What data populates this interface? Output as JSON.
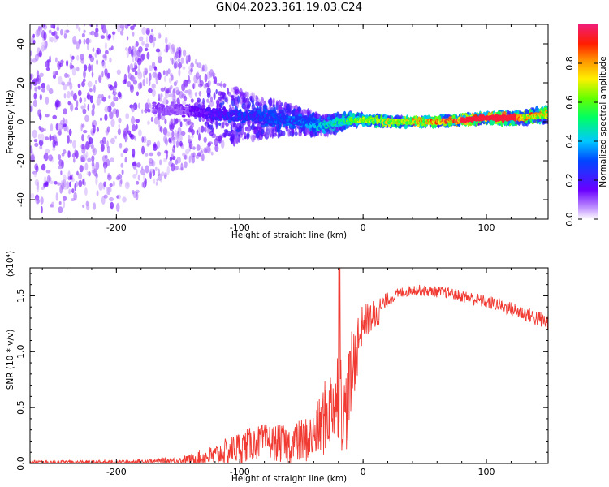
{
  "title": "GN04.2023.361.19.03.C24",
  "chart_data": [
    {
      "type": "heatmap",
      "xlabel": "Height of straight line (km)",
      "ylabel": "Frequency (Hz)",
      "xlim": [
        -270,
        150
      ],
      "ylim": [
        -50,
        50
      ],
      "xticks": [
        -200,
        -100,
        0,
        100
      ],
      "xtick_labels": [
        "-200",
        "-100",
        "0",
        "100"
      ],
      "yticks": [
        -40,
        -20,
        0,
        20,
        40
      ],
      "ytick_labels": [
        "-40",
        "-20",
        "0",
        "20",
        "40"
      ],
      "colorbar": {
        "label": "Normalized spectral amplitude",
        "range": [
          0,
          1
        ],
        "ticks": [
          0,
          0.2,
          0.4,
          0.6,
          0.8
        ],
        "tick_labels": [
          "0.0",
          "0.2",
          "0.4",
          "0.6",
          "0.8"
        ]
      },
      "description_points": [
        {
          "x": -270,
          "spread": 50,
          "amp": 0.12
        },
        {
          "x": -200,
          "spread": 50,
          "amp": 0.12
        },
        {
          "x": -150,
          "spread": 30,
          "amp": 0.1
        },
        {
          "x": -100,
          "spread": 12,
          "amp": 0.25
        },
        {
          "x": -50,
          "spread": 6,
          "amp": 0.3
        },
        {
          "x": 0,
          "spread": 2,
          "amp": 0.6
        },
        {
          "x": 50,
          "spread": 1.5,
          "amp": 0.75
        },
        {
          "x": 100,
          "spread": 2,
          "amp": 0.95
        },
        {
          "x": 150,
          "spread": 3,
          "amp": 0.7
        }
      ],
      "ridge_x": [
        -170,
        -130,
        -100,
        -60,
        -30,
        -10,
        0,
        20,
        60,
        100,
        130,
        150
      ],
      "ridge_y": [
        7,
        5,
        3,
        1,
        -2,
        1,
        1,
        0,
        0,
        2,
        2,
        4
      ]
    },
    {
      "type": "line",
      "xlabel": "Height of straight line (km)",
      "ylabel": "SNR (10 * v/v)",
      "y_multiplier": "(x10",
      "y_multiplier_exp": "4",
      "xlim": [
        -270,
        150
      ],
      "ylim": [
        0,
        1.75
      ],
      "xticks": [
        -200,
        -100,
        0,
        100
      ],
      "xtick_labels": [
        "-200",
        "-100",
        "0",
        "100"
      ],
      "yticks": [
        0,
        0.5,
        1.0,
        1.5
      ],
      "ytick_labels": [
        "0.0",
        "0.5",
        "1.0",
        "1.5"
      ],
      "color": "#f03a32",
      "envelope_x": [
        -270,
        -200,
        -150,
        -140,
        -120,
        -100,
        -80,
        -60,
        -40,
        -30,
        -25,
        -20,
        -15,
        -10,
        -5,
        0,
        10,
        20,
        30,
        40,
        50,
        70,
        90,
        110,
        130,
        150
      ],
      "envelope_y": [
        0.02,
        0.02,
        0.04,
        0.06,
        0.12,
        0.22,
        0.28,
        0.25,
        0.35,
        0.6,
        0.7,
        0.9,
        0.6,
        0.95,
        1.2,
        1.35,
        1.4,
        1.5,
        1.55,
        1.58,
        1.57,
        1.55,
        1.5,
        1.45,
        1.38,
        1.3
      ],
      "noise_y": [
        0.02,
        0.02,
        0.03,
        0.05,
        0.1,
        0.15,
        0.15,
        0.18,
        0.22,
        0.35,
        0.35,
        0.45,
        0.4,
        0.4,
        0.3,
        0.15,
        0.15,
        0.06,
        0.05,
        0.05,
        0.05,
        0.05,
        0.06,
        0.06,
        0.07,
        0.08
      ]
    }
  ]
}
